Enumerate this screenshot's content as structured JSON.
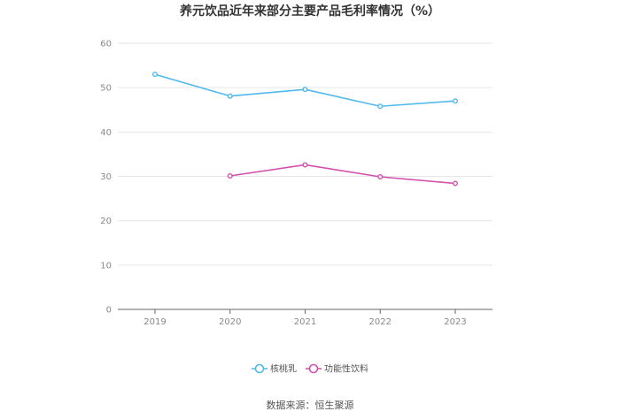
{
  "chart_data": {
    "type": "line",
    "title": "养元饮品近年来部分主要产品毛利率情况（%）",
    "x": [
      "2019",
      "2020",
      "2021",
      "2022",
      "2023"
    ],
    "yticks": [
      "0",
      "10",
      "20",
      "30",
      "40",
      "50",
      "60"
    ],
    "ylim": [
      0,
      60
    ],
    "grid": true,
    "legend_position": "bottom",
    "series": [
      {
        "name": "核桃乳",
        "color": "#4fb8ec",
        "values": [
          53.0,
          48.1,
          49.6,
          45.8,
          47.0
        ]
      },
      {
        "name": "功能性饮料",
        "color": "#d44fae",
        "values": [
          null,
          30.1,
          32.6,
          29.9,
          28.4
        ]
      }
    ]
  },
  "footer": {
    "source": "数据来源：恒生聚源"
  }
}
